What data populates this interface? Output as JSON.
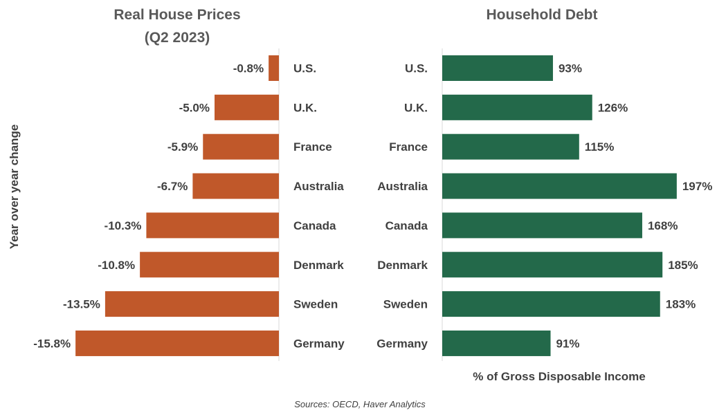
{
  "chart_data": [
    {
      "type": "bar",
      "orientation": "horizontal",
      "title_lines": [
        "Real House Prices",
        "(Q2 2023)"
      ],
      "ylabel": "Year over year change",
      "categories": [
        "U.S.",
        "U.K.",
        "France",
        "Australia",
        "Canada",
        "Denmark",
        "Sweden",
        "Germany"
      ],
      "values": [
        -0.8,
        -5.0,
        -5.9,
        -6.7,
        -10.3,
        -10.8,
        -13.5,
        -15.8
      ],
      "value_labels": [
        "-0.8%",
        "-5.0%",
        "-5.9%",
        "-6.7%",
        "-10.3%",
        "-10.8%",
        "-13.5%",
        "-15.8%"
      ],
      "xlim": [
        -16,
        0
      ],
      "color": "#c0582a",
      "grid": false
    },
    {
      "type": "bar",
      "orientation": "horizontal",
      "title": "Household Debt",
      "xlabel": "% of Gross Disposable Income",
      "categories": [
        "U.S.",
        "U.K.",
        "France",
        "Australia",
        "Canada",
        "Denmark",
        "Sweden",
        "Germany"
      ],
      "values": [
        93,
        126,
        115,
        197,
        168,
        185,
        183,
        91
      ],
      "value_labels": [
        "93%",
        "126%",
        "115%",
        "197%",
        "168%",
        "185%",
        "183%",
        "91%"
      ],
      "xlim": [
        0,
        200
      ],
      "color": "#23694a",
      "grid": false
    }
  ],
  "source": "Sources: OECD, Haver Analytics"
}
